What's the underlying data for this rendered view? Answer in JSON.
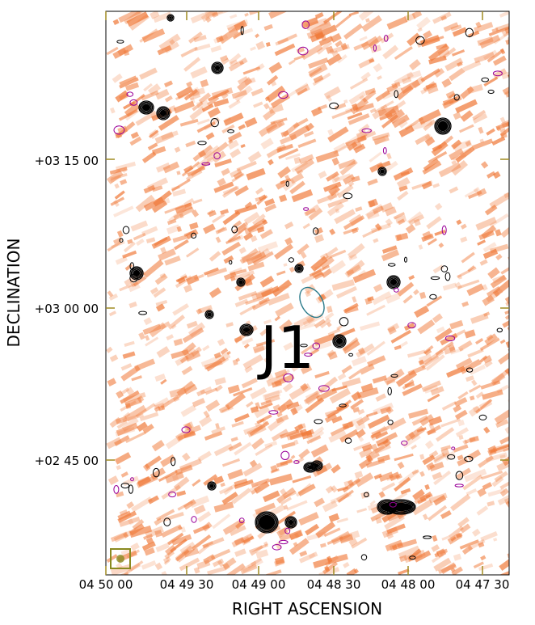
{
  "chart_data": {
    "type": "heatmap",
    "xlabel": "RIGHT ASCENSION",
    "ylabel": "DECLINATION",
    "x_ticks": [
      "04 50 00",
      "04 49 30",
      "04 49 00",
      "04 48 30",
      "04 48 00",
      "04 47 30"
    ],
    "y_ticks": [
      "+03 15 00",
      "+03 00 00",
      "+02 45 00"
    ],
    "annotation": "J1",
    "colors": {
      "background": "#ffffff",
      "emission": "#f07a3a",
      "contour_positive": "#000000",
      "contour_negative": "#990099",
      "source_ellipse": "#2a7a8a",
      "tick_color": "#a08a20",
      "beam_box": "#8a8a20"
    }
  }
}
